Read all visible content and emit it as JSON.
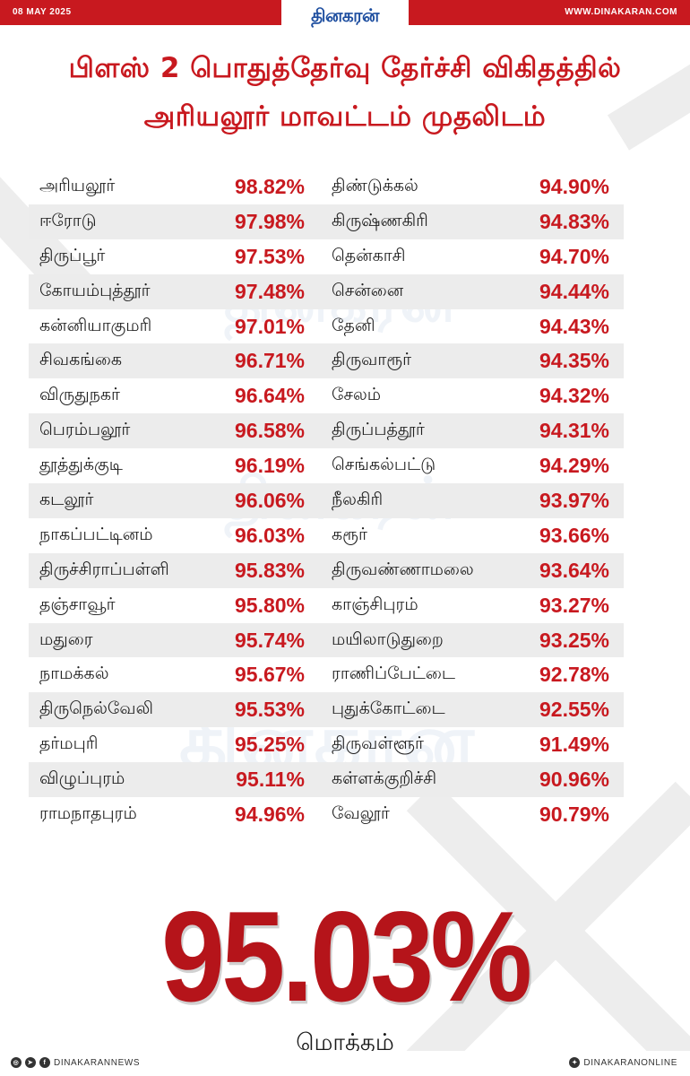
{
  "header": {
    "date": "08 MAY 2025",
    "logo": "தினகரன்",
    "website": "WWW.DINAKARAN.COM"
  },
  "title": {
    "line1": "பிளஸ் 2 பொதுத்தேர்வு தேர்ச்சி விகிதத்தில்",
    "line2": "அரியலூர் மாவட்டம் முதலிடம்"
  },
  "watermark": "தினகரன்",
  "rows": [
    {
      "left": {
        "district": "அரியலூர்",
        "pass": "98.82%"
      },
      "right": {
        "district": "திண்டுக்கல்",
        "pass": "94.90%"
      }
    },
    {
      "left": {
        "district": "ஈரோடு",
        "pass": "97.98%"
      },
      "right": {
        "district": "கிருஷ்ணகிரி",
        "pass": "94.83%"
      }
    },
    {
      "left": {
        "district": "திருப்பூர்",
        "pass": "97.53%"
      },
      "right": {
        "district": "தென்காசி",
        "pass": "94.70%"
      }
    },
    {
      "left": {
        "district": "கோயம்புத்தூர்",
        "pass": "97.48%"
      },
      "right": {
        "district": "சென்னை",
        "pass": "94.44%"
      }
    },
    {
      "left": {
        "district": "கன்னியாகுமரி",
        "pass": "97.01%"
      },
      "right": {
        "district": "தேனி",
        "pass": "94.43%"
      }
    },
    {
      "left": {
        "district": "சிவகங்கை",
        "pass": "96.71%"
      },
      "right": {
        "district": "திருவாரூர்",
        "pass": "94.35%"
      }
    },
    {
      "left": {
        "district": "விருதுநகர்",
        "pass": "96.64%"
      },
      "right": {
        "district": "சேலம்",
        "pass": "94.32%"
      }
    },
    {
      "left": {
        "district": "பெரம்பலூர்",
        "pass": "96.58%"
      },
      "right": {
        "district": "திருப்பத்தூர்",
        "pass": "94.31%"
      }
    },
    {
      "left": {
        "district": "தூத்துக்குடி",
        "pass": "96.19%"
      },
      "right": {
        "district": "செங்கல்பட்டு",
        "pass": "94.29%"
      }
    },
    {
      "left": {
        "district": "கடலூர்",
        "pass": "96.06%"
      },
      "right": {
        "district": "நீலகிரி",
        "pass": "93.97%"
      }
    },
    {
      "left": {
        "district": "நாகப்பட்டினம்",
        "pass": "96.03%"
      },
      "right": {
        "district": "கரூர்",
        "pass": "93.66%"
      }
    },
    {
      "left": {
        "district": "திருச்சிராப்பள்ளி",
        "pass": "95.83%"
      },
      "right": {
        "district": "திருவண்ணாமலை",
        "pass": "93.64%"
      }
    },
    {
      "left": {
        "district": "தஞ்சாவூர்",
        "pass": "95.80%"
      },
      "right": {
        "district": "காஞ்சிபுரம்",
        "pass": "93.27%"
      }
    },
    {
      "left": {
        "district": "மதுரை",
        "pass": "95.74%"
      },
      "right": {
        "district": "மயிலாடுதுறை",
        "pass": "93.25%"
      }
    },
    {
      "left": {
        "district": "நாமக்கல்",
        "pass": "95.67%"
      },
      "right": {
        "district": "ராணிப்பேட்டை",
        "pass": "92.78%"
      }
    },
    {
      "left": {
        "district": "திருநெல்வேலி",
        "pass": "95.53%"
      },
      "right": {
        "district": "புதுக்கோட்டை",
        "pass": "92.55%"
      }
    },
    {
      "left": {
        "district": "தர்மபுரி",
        "pass": "95.25%"
      },
      "right": {
        "district": "திருவள்ளூர்",
        "pass": "91.49%"
      }
    },
    {
      "left": {
        "district": "விழுப்புரம்",
        "pass": "95.11%"
      },
      "right": {
        "district": "கள்ளக்குறிச்சி",
        "pass": "90.96%"
      }
    },
    {
      "left": {
        "district": "ராமநாதபுரம்",
        "pass": "94.96%"
      },
      "right": {
        "district": "வேலூர்",
        "pass": "90.79%"
      }
    }
  ],
  "total": {
    "value": "95.03%",
    "label": "மொத்தம்"
  },
  "footer": {
    "left_handle": "DINAKARANNEWS",
    "right_handle": "DINAKARANONLINE",
    "left_icons": [
      "instagram-icon",
      "telegram-icon",
      "facebook-icon"
    ],
    "right_icons": [
      "twitter-icon"
    ]
  },
  "colors": {
    "accent": "#c8191f",
    "total_red": "#b5141a",
    "logo_blue": "#1f4fa0",
    "row_shade": "#ececec"
  }
}
